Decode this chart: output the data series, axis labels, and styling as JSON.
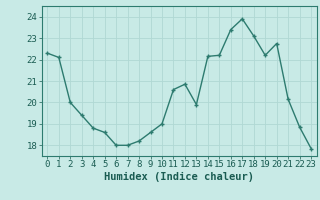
{
  "x": [
    0,
    1,
    2,
    3,
    4,
    5,
    6,
    7,
    8,
    9,
    10,
    11,
    12,
    13,
    14,
    15,
    16,
    17,
    18,
    19,
    20,
    21,
    22,
    23
  ],
  "y": [
    22.3,
    22.1,
    20.0,
    19.4,
    18.8,
    18.6,
    18.0,
    18.0,
    18.2,
    18.6,
    19.0,
    20.6,
    20.85,
    19.9,
    22.15,
    22.2,
    23.4,
    23.9,
    23.1,
    22.2,
    22.75,
    20.15,
    18.85,
    17.85
  ],
  "line_color": "#2d7b6f",
  "marker": "+",
  "bg_color": "#c8eae6",
  "grid_color": "#b0d8d4",
  "xlabel": "Humidex (Indice chaleur)",
  "xlim": [
    -0.5,
    23.5
  ],
  "ylim": [
    17.5,
    24.5
  ],
  "yticks": [
    18,
    19,
    20,
    21,
    22,
    23,
    24
  ],
  "xticks": [
    0,
    1,
    2,
    3,
    4,
    5,
    6,
    7,
    8,
    9,
    10,
    11,
    12,
    13,
    14,
    15,
    16,
    17,
    18,
    19,
    20,
    21,
    22,
    23
  ],
  "tick_label_fontsize": 6.5,
  "xlabel_fontsize": 7.5,
  "label_color": "#1a5c52",
  "spine_color": "#2d7b6f",
  "linewidth": 1.0,
  "markersize": 3.5
}
